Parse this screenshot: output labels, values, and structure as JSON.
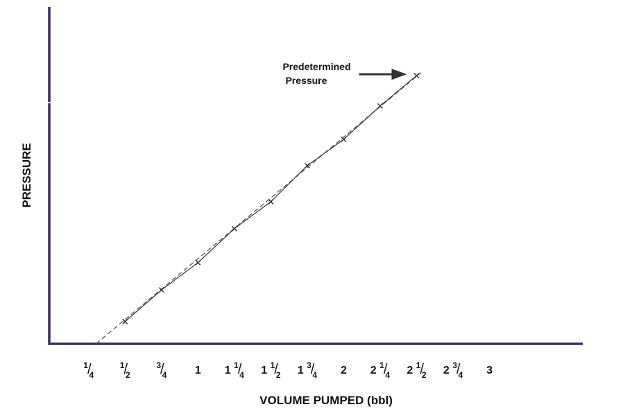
{
  "chart_data": {
    "type": "line",
    "x_label": "VOLUME PUMPED (bbl)",
    "y_label": "PRESSURE",
    "x": [
      0.5,
      0.75,
      1,
      1.25,
      1.5,
      1.75,
      2,
      2.25,
      2.5
    ],
    "series": [
      {
        "color": "#333333",
        "values": [
          6.6,
          16.0,
          24.1,
          34.2,
          42.2,
          52.9,
          60.7,
          70.6,
          79.6
        ]
      }
    ],
    "trend_line": {
      "x": [
        0.3,
        2.53
      ],
      "values": [
        0,
        80.5
      ],
      "color": "#555555"
    },
    "xlim": [
      -0.02,
      3.64
    ],
    "ylim": [
      0,
      100
    ],
    "xticks": [
      {
        "value": 0.25,
        "label": "1/4"
      },
      {
        "value": 0.5,
        "label": "1/2"
      },
      {
        "value": 0.75,
        "label": "3/4"
      },
      1,
      {
        "value": 1.25,
        "label": "1 1/4"
      },
      {
        "value": 1.5,
        "label": "1 1/2"
      },
      {
        "value": 1.75,
        "label": "1 3/4"
      },
      2,
      {
        "value": 2.25,
        "label": "2 1/4"
      },
      {
        "value": 2.5,
        "label": "2 1/2"
      },
      {
        "value": 2.75,
        "label": "2 3/4"
      },
      3
    ],
    "annotation": {
      "lines": [
        "Predetermined",
        "Pressure"
      ],
      "x": 2.5,
      "y": 79.6
    },
    "axis_color": "#3b2a5c"
  }
}
